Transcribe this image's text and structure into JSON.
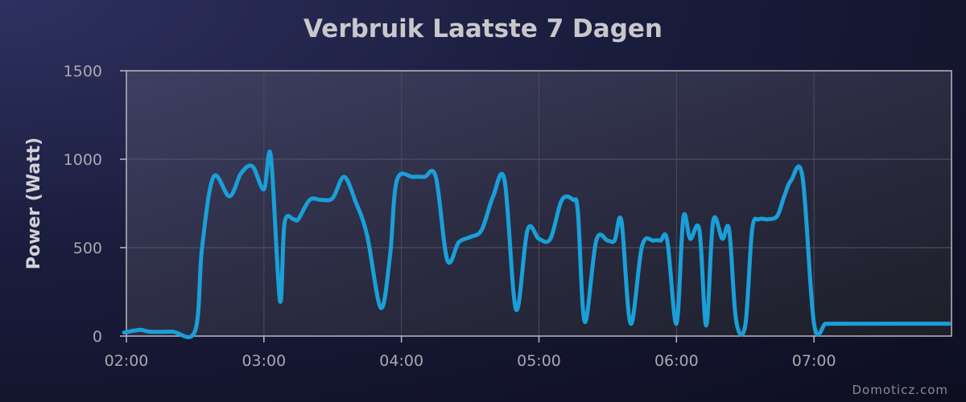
{
  "chart_data": {
    "type": "line",
    "title": "Verbruik Laatste 7 Dagen",
    "ylabel": "Power (Watt)",
    "xlabel": "",
    "ylim": [
      0,
      1500
    ],
    "yticks": [
      0,
      500,
      1000,
      1500
    ],
    "xlim": [
      "02:00",
      "08:00"
    ],
    "xticks": [
      "02:00",
      "03:00",
      "04:00",
      "05:00",
      "06:00",
      "07:00"
    ],
    "grid": true,
    "legend": "none",
    "credit": "Domoticz.com",
    "series": [
      {
        "color": "#1a9fd8",
        "x": [
          "01:59",
          "02:06",
          "02:10",
          "02:20",
          "02:30",
          "02:33",
          "02:38",
          "02:45",
          "02:50",
          "02:55",
          "03:00",
          "03:03",
          "03:07",
          "03:09",
          "03:13",
          "03:15",
          "03:20",
          "03:25",
          "03:30",
          "03:35",
          "03:40",
          "03:45",
          "03:51",
          "03:55",
          "03:58",
          "04:05",
          "04:10",
          "04:15",
          "04:20",
          "04:25",
          "04:30",
          "04:35",
          "04:40",
          "04:45",
          "04:50",
          "04:55",
          "05:00",
          "05:05",
          "05:10",
          "05:15",
          "05:17",
          "05:20",
          "05:25",
          "05:30",
          "05:33",
          "05:36",
          "05:40",
          "05:45",
          "05:50",
          "05:53",
          "05:56",
          "06:00",
          "06:03",
          "06:06",
          "06:10",
          "06:13",
          "06:16",
          "06:20",
          "06:23",
          "06:26",
          "06:30",
          "06:33",
          "06:36",
          "06:40",
          "06:44",
          "06:47",
          "06:50",
          "06:55",
          "07:00",
          "07:05",
          "07:08",
          "07:10",
          "07:15",
          "07:20",
          "07:25",
          "07:30",
          "07:35",
          "07:40",
          "07:46",
          "07:59"
        ],
        "y": [
          20,
          35,
          25,
          25,
          30,
          500,
          900,
          790,
          920,
          960,
          830,
          1020,
          200,
          640,
          660,
          660,
          770,
          770,
          780,
          900,
          760,
          570,
          160,
          450,
          880,
          900,
          900,
          900,
          430,
          530,
          560,
          600,
          790,
          880,
          150,
          600,
          550,
          550,
          770,
          770,
          700,
          80,
          540,
          540,
          540,
          650,
          70,
          510,
          540,
          540,
          540,
          70,
          670,
          550,
          600,
          60,
          650,
          550,
          600,
          90,
          60,
          600,
          660,
          660,
          680,
          790,
          880,
          900,
          70,
          70,
          70,
          70,
          70,
          70,
          70,
          70,
          70,
          70,
          70,
          70
        ]
      }
    ]
  }
}
